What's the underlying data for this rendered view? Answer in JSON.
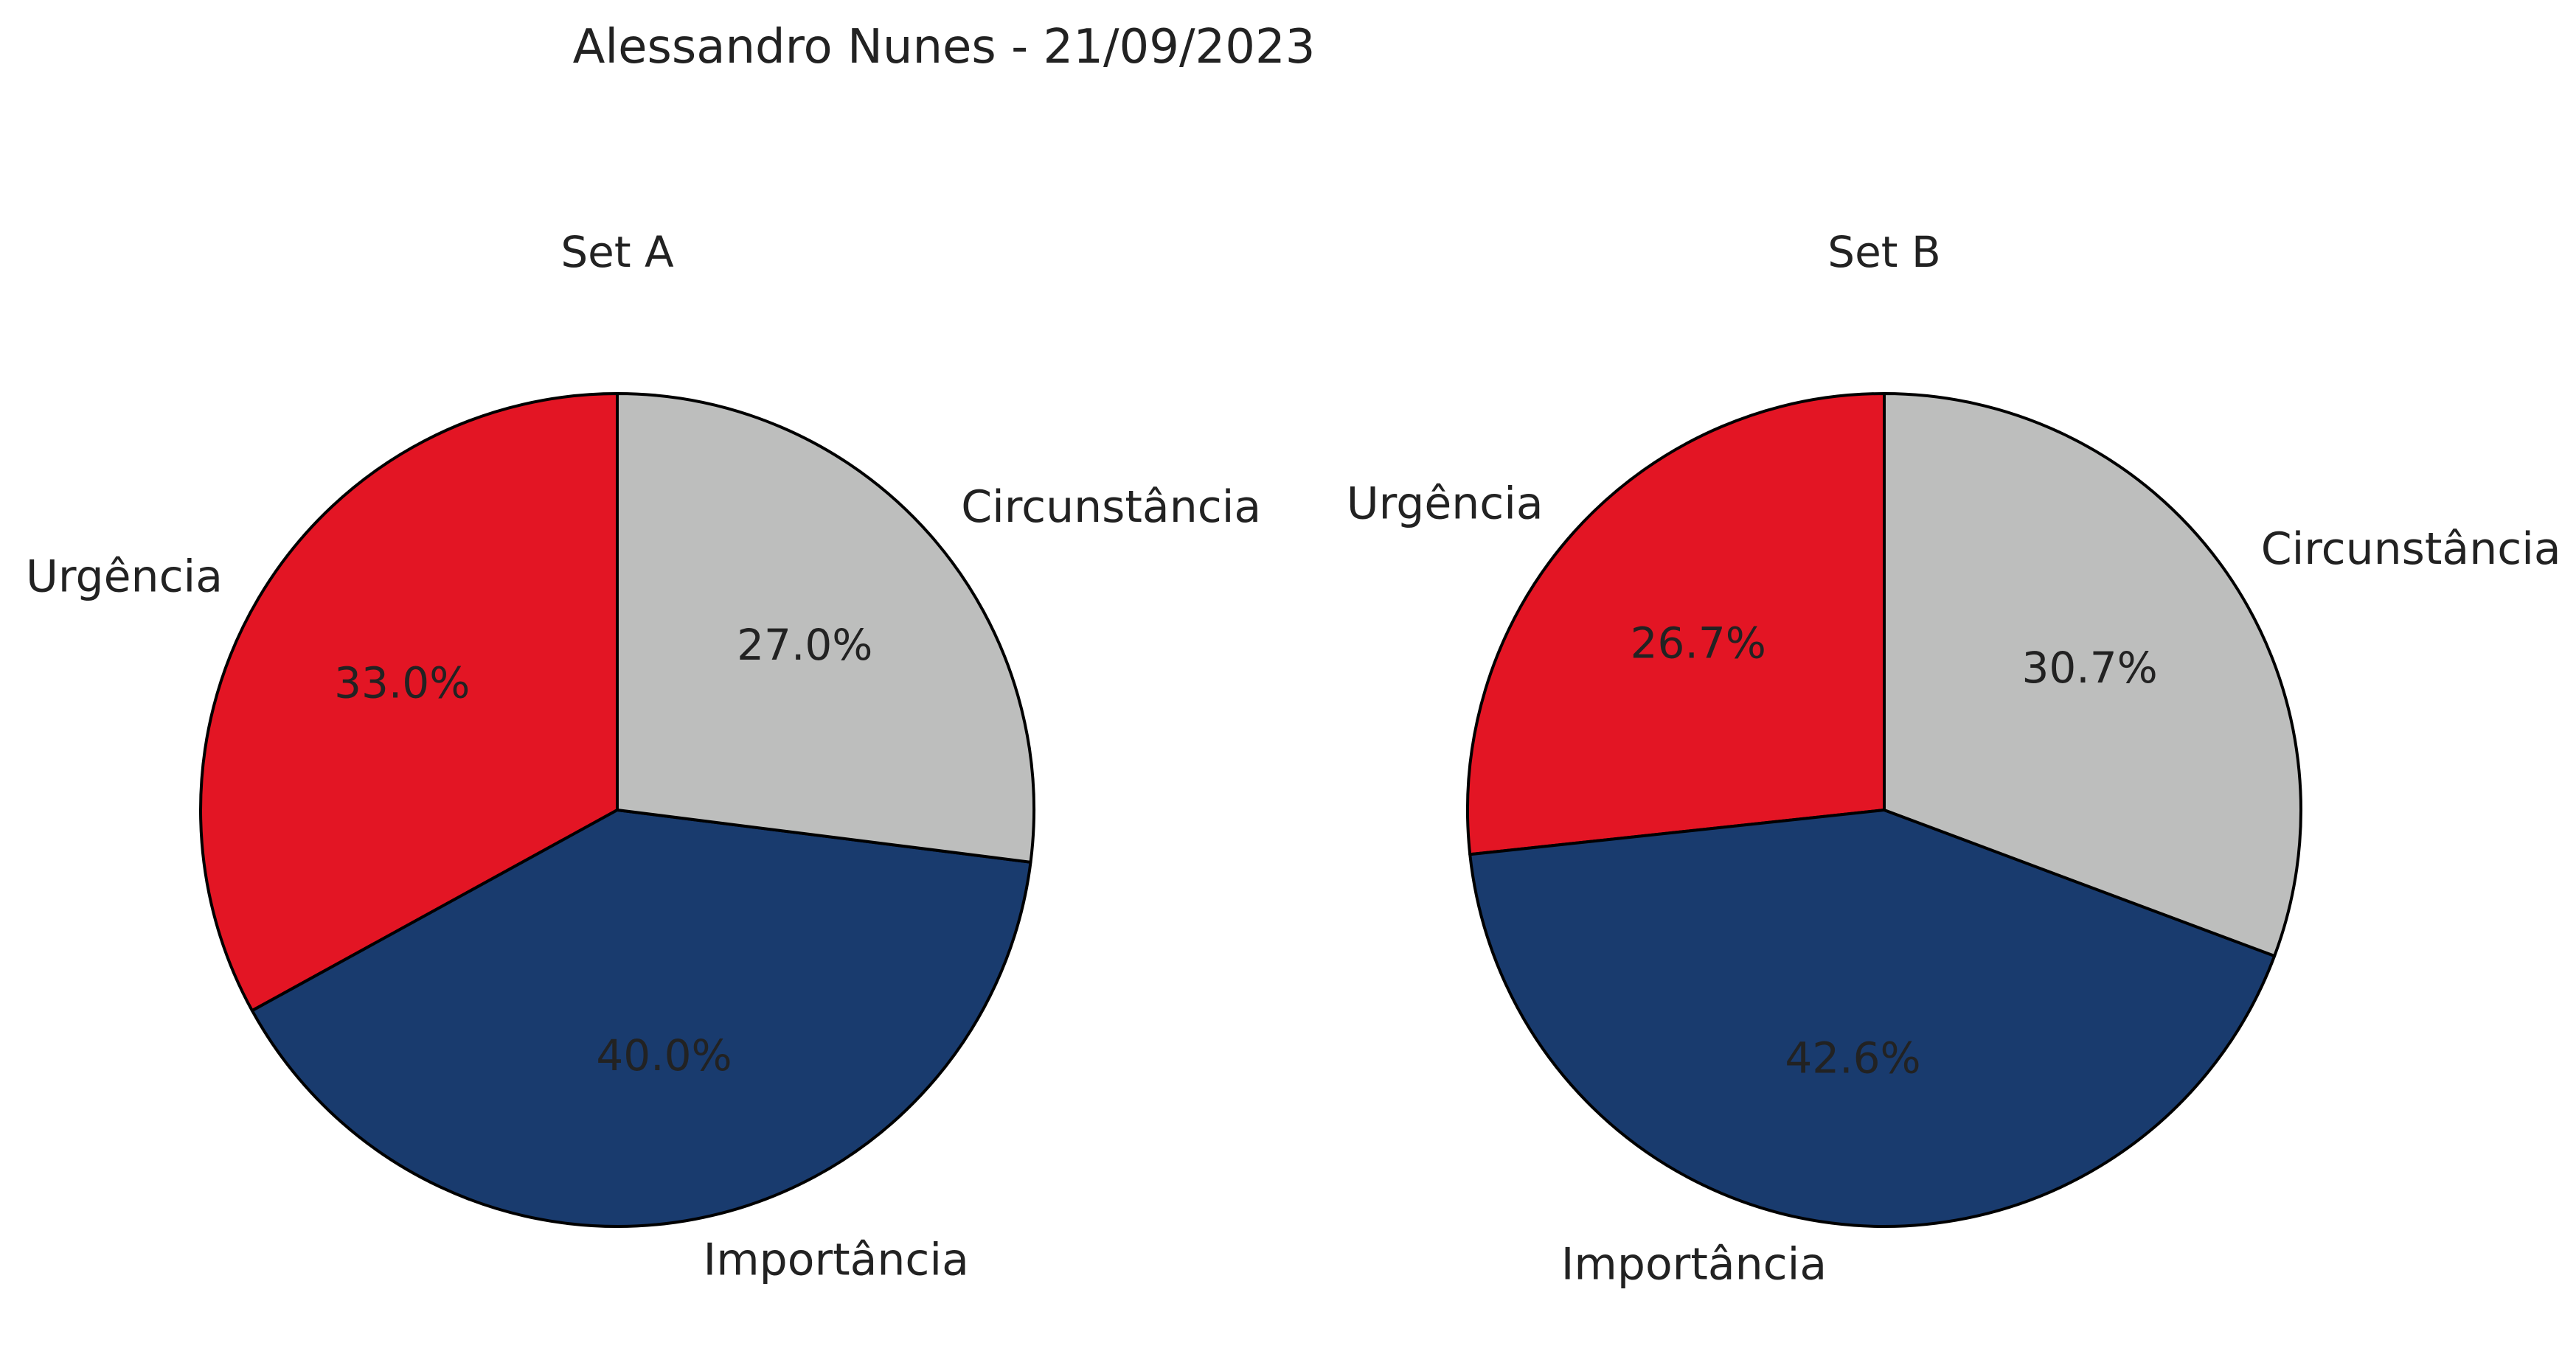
{
  "figure": {
    "title": "Alessandro Nunes - 21/09/2023"
  },
  "chart_data": [
    {
      "type": "pie",
      "title": "Set A",
      "start_angle_deg": 90,
      "direction": "counterclockwise",
      "categories": [
        "Urgência",
        "Importância",
        "Circunstância"
      ],
      "values": [
        33.0,
        40.0,
        27.0
      ],
      "labels": [
        "33.0%",
        "40.0%",
        "27.0%"
      ],
      "colors": [
        "#e31524",
        "#193b6e",
        "#bdbebd"
      ],
      "edge_color": "#000000"
    },
    {
      "type": "pie",
      "title": "Set B",
      "start_angle_deg": 90,
      "direction": "counterclockwise",
      "categories": [
        "Urgência",
        "Importância",
        "Circunstância"
      ],
      "values": [
        26.7,
        42.6,
        30.7
      ],
      "labels": [
        "26.7%",
        "42.6%",
        "30.7%"
      ],
      "colors": [
        "#e31524",
        "#193b6e",
        "#bdbebd"
      ],
      "edge_color": "#000000"
    }
  ]
}
